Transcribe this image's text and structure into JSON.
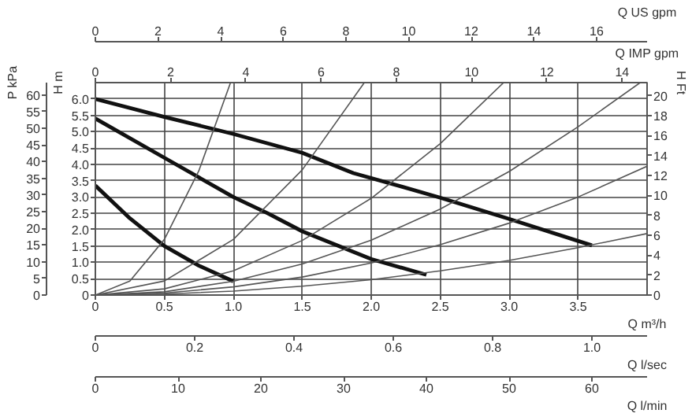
{
  "chart_data": {
    "type": "line",
    "xlabel": "Q m³/h",
    "ylabel": "H m",
    "y2label": "P kPa",
    "y3label": "H Ft",
    "x2label": "Q US gpm",
    "xlim": [
      0,
      4
    ],
    "ylim": [
      0,
      6.5
    ],
    "x2lim": [
      0,
      17.61
    ],
    "y2lim": [
      0,
      63.7
    ],
    "y3lim": [
      0,
      21.33
    ],
    "xticks": [
      0,
      0.5,
      {
        "value": 1,
        "label": "1.0"
      },
      1.5,
      {
        "value": 2,
        "label": "2.0"
      },
      2.5,
      {
        "value": 3,
        "label": "3.0"
      },
      3.5
    ],
    "yticks": [
      0,
      0.5,
      {
        "value": 1,
        "label": "1.0"
      },
      1.5,
      {
        "value": 2,
        "label": "2.0"
      },
      2.5,
      {
        "value": 3,
        "label": "3.0"
      },
      3.5,
      {
        "value": 4,
        "label": "4.0"
      },
      4.5,
      {
        "value": 5,
        "label": "5.0"
      },
      5.5,
      {
        "value": 6,
        "label": "6.0"
      }
    ],
    "x2ticks": [
      0,
      2,
      4,
      6,
      8,
      10,
      12,
      14,
      16
    ],
    "y2ticks": [
      0,
      5,
      10,
      15,
      20,
      25,
      30,
      35,
      40,
      45,
      50,
      55,
      60
    ],
    "y3ticks": [
      0,
      2,
      4,
      6,
      8,
      10,
      12,
      14,
      16,
      18,
      20
    ],
    "annotations": [
      "Q IMP gpm",
      "0",
      "2",
      "4",
      "6",
      "8",
      "10",
      "12",
      "14",
      "Q l/sec",
      "0",
      "0.2",
      "0.4",
      "0.6",
      "0.8",
      "1.0",
      "Q l/min",
      "0",
      "10",
      "20",
      "30",
      "40",
      "50",
      "60"
    ],
    "grid": true,
    "series": [
      {
        "color": "#111111",
        "x": [
          0,
          0.5,
          1.0,
          1.5,
          1.87,
          2.22,
          2.5,
          3.0,
          3.6
        ],
        "values": [
          6.0,
          5.45,
          4.93,
          4.35,
          3.73,
          3.32,
          2.98,
          2.33,
          1.52
        ]
      },
      {
        "color": "#111111",
        "x": [
          0,
          0.5,
          1.0,
          1.25,
          1.5,
          2.0,
          2.4
        ],
        "values": [
          5.4,
          4.2,
          3.0,
          2.5,
          1.95,
          1.1,
          0.62
        ]
      },
      {
        "color": "#111111",
        "x": [
          0,
          0.25,
          0.5,
          0.75,
          1.0
        ],
        "values": [
          3.35,
          2.35,
          1.5,
          0.9,
          0.42
        ]
      },
      {
        "color": "#555555",
        "x": [
          0,
          0.25,
          0.5,
          0.75,
          0.98
        ],
        "values": [
          0,
          0.43,
          1.7,
          3.8,
          6.5
        ]
      },
      {
        "color": "#555555",
        "x": [
          0,
          0.5,
          1.0,
          1.5,
          1.95
        ],
        "values": [
          0,
          0.43,
          1.7,
          3.83,
          6.5
        ]
      },
      {
        "color": "#555555",
        "x": [
          0,
          0.5,
          1.0,
          1.5,
          2.0,
          2.5,
          2.96
        ],
        "values": [
          0,
          0.19,
          0.74,
          1.67,
          2.96,
          4.63,
          6.5
        ]
      },
      {
        "color": "#555555",
        "x": [
          0,
          0.5,
          1.0,
          1.5,
          2.0,
          2.5,
          3.0,
          3.5,
          3.95
        ],
        "values": [
          0,
          0.1,
          0.42,
          0.95,
          1.68,
          2.63,
          3.78,
          5.15,
          6.5
        ]
      },
      {
        "color": "#555555",
        "x": [
          0,
          0.5,
          1.0,
          1.5,
          2.0,
          2.5,
          3.0,
          3.5,
          4.0
        ],
        "values": [
          0,
          0.06,
          0.25,
          0.55,
          0.98,
          1.54,
          2.2,
          3.0,
          3.94
        ]
      },
      {
        "color": "#555555",
        "x": [
          0,
          0.5,
          1.0,
          1.5,
          2.0,
          2.5,
          3.0,
          3.5,
          4.0
        ],
        "values": [
          0,
          0.03,
          0.12,
          0.27,
          0.47,
          0.74,
          1.06,
          1.45,
          1.88
        ]
      }
    ]
  }
}
